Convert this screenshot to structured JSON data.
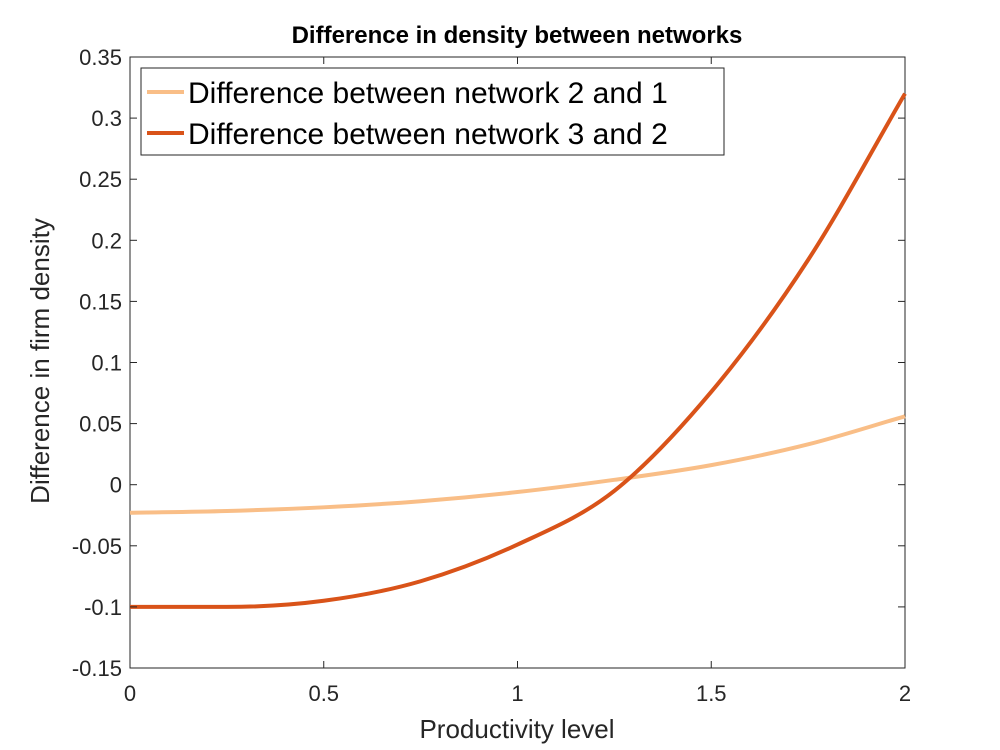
{
  "chart_data": {
    "type": "line",
    "title": "Difference in density between networks",
    "xlabel": "Productivity level",
    "ylabel": "Difference in firm density",
    "xlim": [
      0,
      2
    ],
    "ylim": [
      -0.15,
      0.35
    ],
    "xticks": [
      0,
      0.5,
      1,
      1.5,
      2
    ],
    "xtick_labels": [
      "0",
      "0.5",
      "1",
      "1.5",
      "2"
    ],
    "yticks": [
      -0.15,
      -0.1,
      -0.05,
      0,
      0.05,
      0.1,
      0.15,
      0.2,
      0.25,
      0.3,
      0.35
    ],
    "ytick_labels": [
      "-0.15",
      "-0.1",
      "-0.05",
      "0",
      "0.05",
      "0.1",
      "0.15",
      "0.2",
      "0.25",
      "0.3",
      "0.35"
    ],
    "grid": false,
    "legend_position": "top-left",
    "series": [
      {
        "name": "Difference between network 2 and 1",
        "color": "#F9BE87",
        "x": [
          0,
          0.25,
          0.5,
          0.75,
          1.0,
          1.25,
          1.5,
          1.75,
          2.0
        ],
        "y": [
          -0.023,
          -0.0215,
          -0.0185,
          -0.0135,
          -0.006,
          0.004,
          0.016,
          0.033,
          0.056
        ]
      },
      {
        "name": "Difference between network 3 and 2",
        "color": "#D95319",
        "x": [
          0,
          0.25,
          0.5,
          0.75,
          1.0,
          1.25,
          1.5,
          1.75,
          2.0
        ],
        "y": [
          -0.1,
          -0.1,
          -0.095,
          -0.079,
          -0.049,
          -0.005,
          0.076,
          0.184,
          0.32
        ]
      }
    ]
  }
}
